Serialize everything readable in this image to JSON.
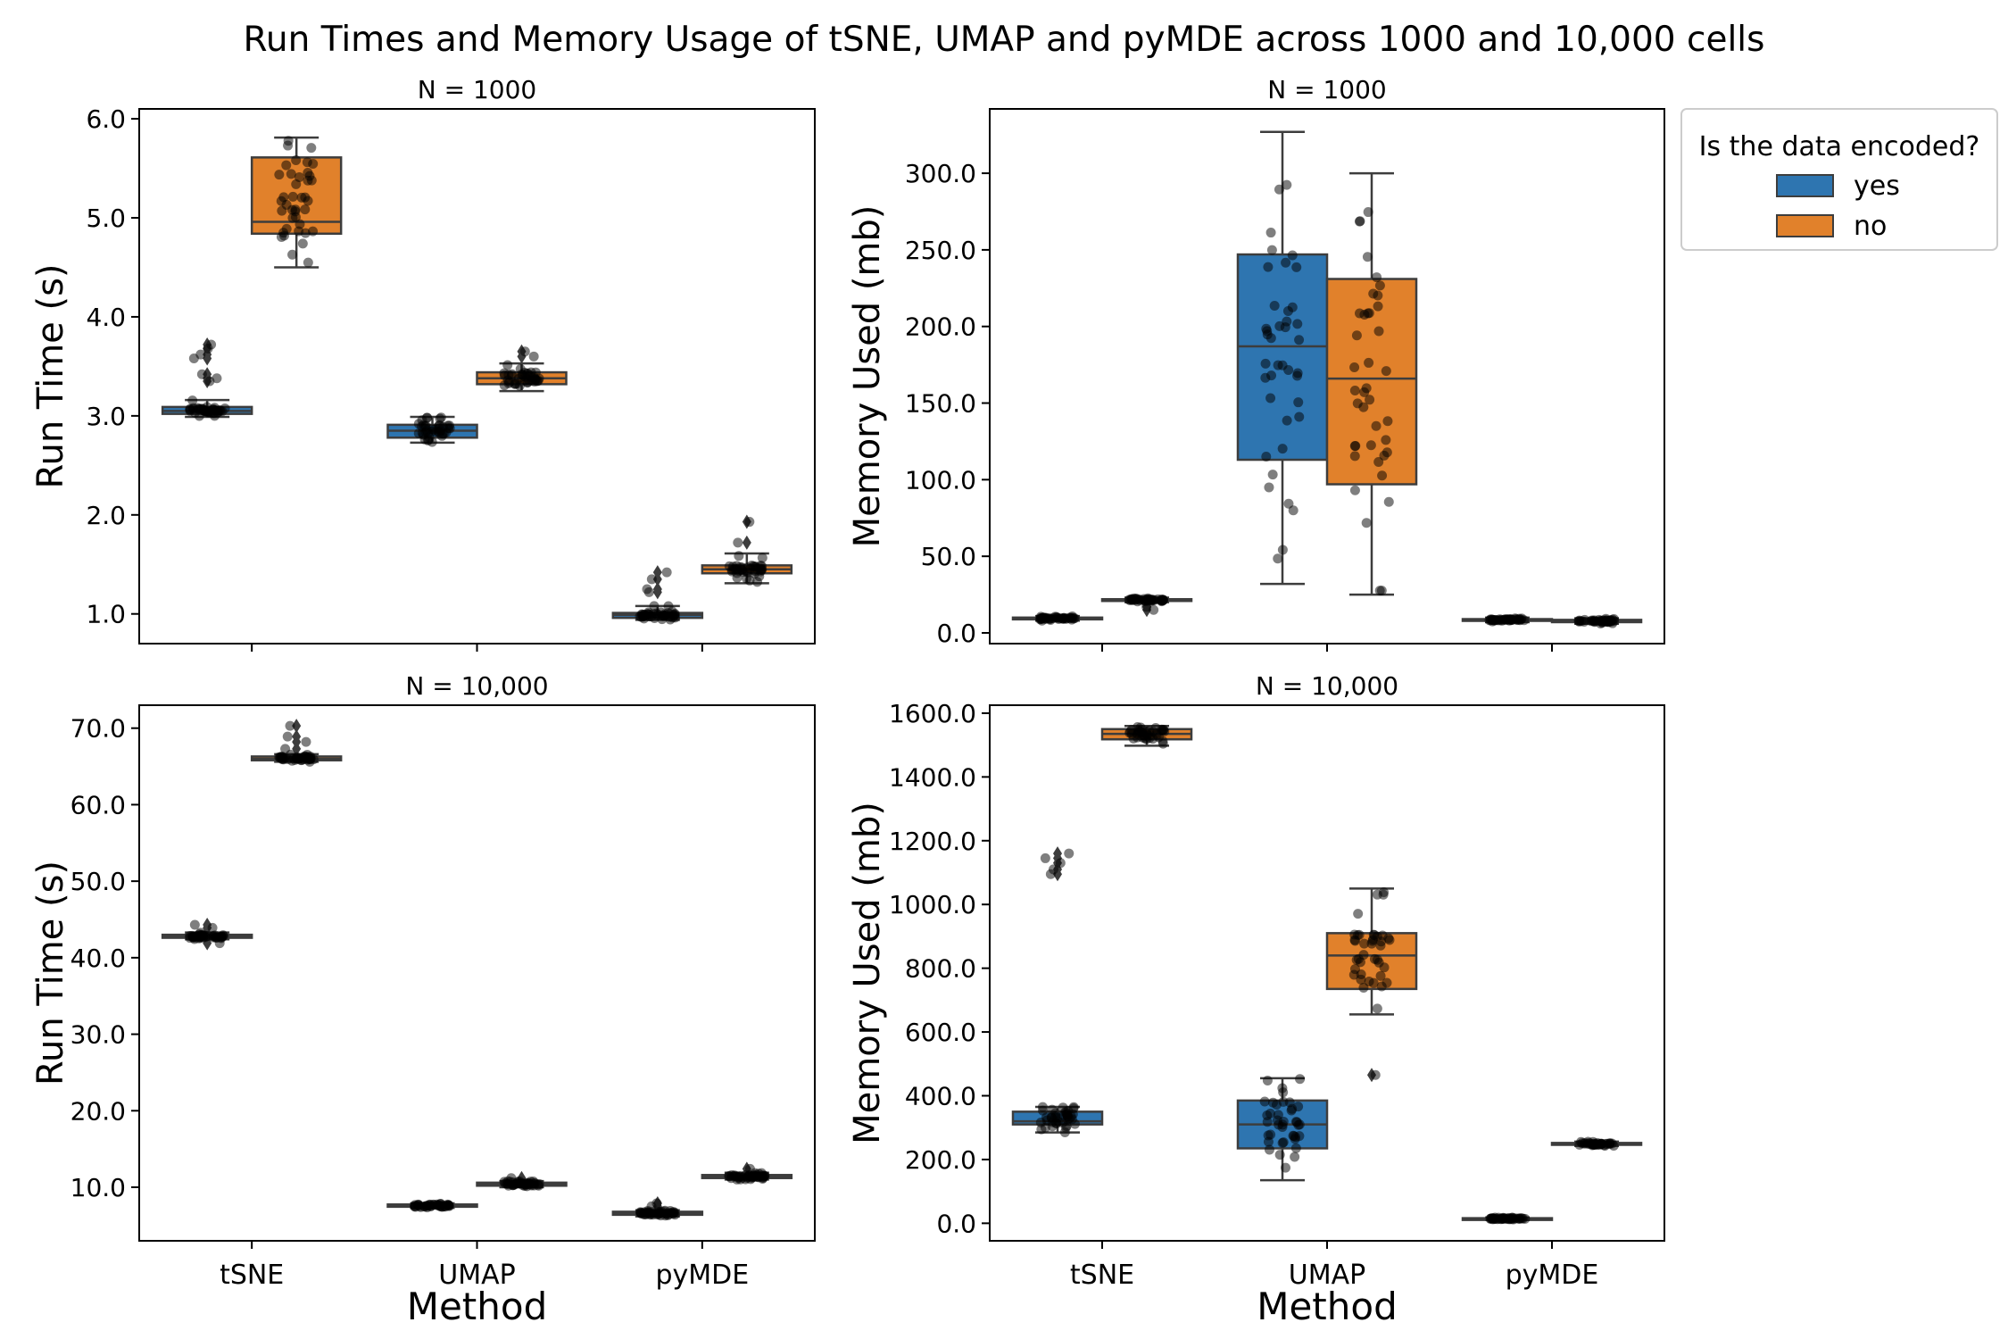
{
  "title": "Run Times and Memory Usage of tSNE, UMAP and pyMDE across 1000 and 10,000 cells",
  "colors": {
    "yes": "#2e75b0",
    "no": "#e1812b",
    "points": "#000000"
  },
  "legend": {
    "title": "Is the data encoded?",
    "entries": [
      {
        "label": "yes",
        "color": "#2e75b0"
      },
      {
        "label": "no",
        "color": "#e1812b"
      }
    ],
    "placement": "outside-right"
  },
  "chart_data": [
    {
      "type": "box",
      "title": "N = 1000",
      "xlabel": "",
      "ylabel": "Run Time (s)",
      "categories": [
        "tSNE",
        "UMAP",
        "pyMDE"
      ],
      "show_x_tick_labels": false,
      "ylim": [
        0.7,
        6.1
      ],
      "yticks": [
        1.0,
        2.0,
        3.0,
        4.0,
        5.0,
        6.0
      ],
      "ytick_labels": [
        "1.0",
        "2.0",
        "3.0",
        "4.0",
        "5.0",
        "6.0"
      ],
      "series": [
        {
          "name": "yes",
          "boxes": [
            {
              "whislo": 2.99,
              "q1": 3.02,
              "med": 3.05,
              "q3": 3.09,
              "whishi": 3.16,
              "fliers": [
                3.35,
                3.38,
                3.42,
                3.58,
                3.62,
                3.68,
                3.72
              ]
            },
            {
              "whislo": 2.73,
              "q1": 2.78,
              "med": 2.85,
              "q3": 2.91,
              "whishi": 2.99,
              "fliers": []
            },
            {
              "whislo": 0.94,
              "q1": 0.96,
              "med": 0.99,
              "q3": 1.01,
              "whishi": 1.08,
              "fliers": [
                1.22,
                1.25,
                1.35,
                1.42
              ]
            }
          ]
        },
        {
          "name": "no",
          "boxes": [
            {
              "whislo": 4.5,
              "q1": 4.84,
              "med": 4.96,
              "q3": 5.61,
              "whishi": 5.81,
              "fliers": []
            },
            {
              "whislo": 3.25,
              "q1": 3.32,
              "med": 3.38,
              "q3": 3.44,
              "whishi": 3.53,
              "fliers": [
                3.6,
                3.65
              ]
            },
            {
              "whislo": 1.31,
              "q1": 1.41,
              "med": 1.45,
              "q3": 1.49,
              "whishi": 1.61,
              "fliers": [
                1.72,
                1.93
              ]
            }
          ]
        }
      ]
    },
    {
      "type": "box",
      "title": "N = 1000",
      "xlabel": "",
      "ylabel": "Memory Used (mb)",
      "categories": [
        "tSNE",
        "UMAP",
        "pyMDE"
      ],
      "show_x_tick_labels": false,
      "ylim": [
        -7,
        342
      ],
      "yticks": [
        0,
        50,
        100,
        150,
        200,
        250,
        300
      ],
      "ytick_labels": [
        "0.0",
        "50.0",
        "100.0",
        "150.0",
        "200.0",
        "250.0",
        "300.0"
      ],
      "series": [
        {
          "name": "yes",
          "boxes": [
            {
              "whislo": 8,
              "q1": 9,
              "med": 9.5,
              "q3": 10,
              "whishi": 11,
              "fliers": []
            },
            {
              "whislo": 32,
              "q1": 113,
              "med": 187,
              "q3": 247,
              "whishi": 327,
              "fliers": []
            },
            {
              "whislo": 7,
              "q1": 8,
              "med": 8.5,
              "q3": 9,
              "whishi": 10,
              "fliers": []
            }
          ]
        },
        {
          "name": "no",
          "boxes": [
            {
              "whislo": 20,
              "q1": 21,
              "med": 21.5,
              "q3": 22,
              "whishi": 23,
              "fliers": [
                15,
                17
              ]
            },
            {
              "whislo": 25,
              "q1": 97,
              "med": 166,
              "q3": 231,
              "whishi": 300,
              "fliers": []
            },
            {
              "whislo": 6,
              "q1": 7,
              "med": 7.5,
              "q3": 8.5,
              "whishi": 9.5,
              "fliers": []
            }
          ]
        }
      ]
    },
    {
      "type": "box",
      "title": "N = 10,000",
      "xlabel": "Method",
      "ylabel": "Run Time (s)",
      "categories": [
        "tSNE",
        "UMAP",
        "pyMDE"
      ],
      "show_x_tick_labels": true,
      "ylim": [
        3,
        73
      ],
      "yticks": [
        10,
        20,
        30,
        40,
        50,
        60,
        70
      ],
      "ytick_labels": [
        "10.0",
        "20.0",
        "30.0",
        "40.0",
        "50.0",
        "60.0",
        "70.0"
      ],
      "series": [
        {
          "name": "yes",
          "boxes": [
            {
              "whislo": 42.4,
              "q1": 42.6,
              "med": 42.8,
              "q3": 43.0,
              "whishi": 43.3,
              "fliers": [
                41.9,
                43.9,
                44.3
              ]
            },
            {
              "whislo": 7.3,
              "q1": 7.45,
              "med": 7.6,
              "q3": 7.75,
              "whishi": 7.9,
              "fliers": []
            },
            {
              "whislo": 6.2,
              "q1": 6.4,
              "med": 6.6,
              "q3": 6.8,
              "whishi": 7.0,
              "fliers": [
                7.5,
                7.9
              ]
            }
          ]
        },
        {
          "name": "no",
          "boxes": [
            {
              "whislo": 65.6,
              "q1": 65.8,
              "med": 66.0,
              "q3": 66.3,
              "whishi": 66.6,
              "fliers": [
                67.3,
                68.2,
                68.9,
                70.3
              ]
            },
            {
              "whislo": 10.0,
              "q1": 10.2,
              "med": 10.4,
              "q3": 10.6,
              "whishi": 10.8,
              "fliers": [
                11.2
              ]
            },
            {
              "whislo": 11.0,
              "q1": 11.2,
              "med": 11.4,
              "q3": 11.6,
              "whishi": 11.9,
              "fliers": [
                12.4
              ]
            }
          ]
        }
      ]
    },
    {
      "type": "box",
      "title": "N = 10,000",
      "xlabel": "Method",
      "ylabel": "Memory Used (mb)",
      "categories": [
        "tSNE",
        "UMAP",
        "pyMDE"
      ],
      "show_x_tick_labels": true,
      "ylim": [
        -55,
        1625
      ],
      "yticks": [
        0,
        200,
        400,
        600,
        800,
        1000,
        1200,
        1400,
        1600
      ],
      "ytick_labels": [
        "0.0",
        "200.0",
        "400.0",
        "600.0",
        "800.0",
        "1000.0",
        "1200.0",
        "1400.0",
        "1600.0"
      ],
      "series": [
        {
          "name": "yes",
          "boxes": [
            {
              "whislo": 285,
              "q1": 310,
              "med": 320,
              "q3": 350,
              "whishi": 365,
              "fliers": [
                1095,
                1110,
                1130,
                1145,
                1160
              ]
            },
            {
              "whislo": 135,
              "q1": 235,
              "med": 310,
              "q3": 385,
              "whishi": 455,
              "fliers": []
            },
            {
              "whislo": 10,
              "q1": 12,
              "med": 14,
              "q3": 16,
              "whishi": 18,
              "fliers": []
            }
          ]
        },
        {
          "name": "no",
          "boxes": [
            {
              "whislo": 1498,
              "q1": 1518,
              "med": 1535,
              "q3": 1550,
              "whishi": 1560,
              "fliers": []
            },
            {
              "whislo": 655,
              "q1": 735,
              "med": 840,
              "q3": 910,
              "whishi": 1050,
              "fliers": [
                465
              ]
            },
            {
              "whislo": 243,
              "q1": 246,
              "med": 249,
              "q3": 252,
              "whishi": 256,
              "fliers": []
            }
          ]
        }
      ]
    }
  ]
}
